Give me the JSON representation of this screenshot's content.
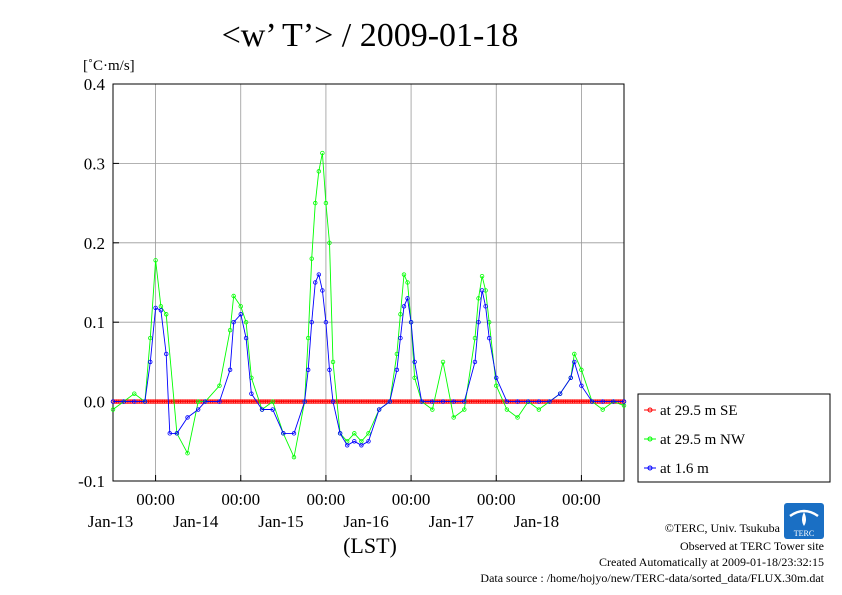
{
  "chart_data": {
    "type": "line",
    "title": "<w’ T’> / 2009-01-18",
    "ylabel": "[˚C·m/s]",
    "xlabel": "(LST)",
    "ylim": [
      -0.1,
      0.4
    ],
    "yticks": [
      "0.4",
      "0.3",
      "0.2",
      "0.1",
      "0.0",
      "-0.1"
    ],
    "xlim_hours": [
      0,
      144
    ],
    "xticks": [
      {
        "hour": 12,
        "time": "00:00",
        "date": "Jan-13"
      },
      {
        "hour": 36,
        "time": "00:00",
        "date": "Jan-14"
      },
      {
        "hour": 60,
        "time": "00:00",
        "date": "Jan-15"
      },
      {
        "hour": 84,
        "time": "00:00",
        "date": "Jan-16"
      },
      {
        "hour": 108,
        "time": "00:00",
        "date": "Jan-17"
      },
      {
        "hour": 132,
        "time": "00:00",
        "date": "Jan-18"
      }
    ],
    "grid": true,
    "legend_position": "right",
    "series": [
      {
        "name": "at 29.5 m SE",
        "color": "#ff0000",
        "x": [
          0,
          144
        ],
        "y": [
          0.0,
          0.0
        ]
      },
      {
        "name": "at 29.5 m NW",
        "color": "#00ff00",
        "x": [
          0,
          3,
          6,
          9,
          10.5,
          12,
          13.5,
          15,
          18,
          21,
          24,
          26,
          30,
          33,
          34,
          36,
          37.5,
          39,
          42,
          45,
          48,
          51,
          54,
          55,
          56,
          57,
          58,
          59,
          60,
          61,
          62,
          64,
          66,
          68,
          70,
          72,
          75,
          78,
          80,
          81,
          82,
          83,
          84,
          85,
          87,
          90,
          93,
          96,
          99,
          102,
          103,
          104,
          105,
          106,
          108,
          111,
          114,
          117,
          120,
          123,
          126,
          129,
          130,
          132,
          135,
          138,
          141,
          144
        ],
        "y": [
          -0.01,
          0.0,
          0.01,
          0.0,
          0.08,
          0.178,
          0.12,
          0.11,
          -0.04,
          -0.065,
          0.0,
          0.0,
          0.02,
          0.09,
          0.133,
          0.12,
          0.1,
          0.03,
          -0.01,
          0.0,
          -0.04,
          -0.07,
          0.0,
          0.08,
          0.18,
          0.25,
          0.29,
          0.313,
          0.25,
          0.2,
          0.05,
          -0.04,
          -0.05,
          -0.04,
          -0.05,
          -0.04,
          -0.01,
          0.0,
          0.06,
          0.11,
          0.16,
          0.15,
          0.1,
          0.03,
          0.0,
          -0.01,
          0.05,
          -0.02,
          -0.01,
          0.08,
          0.13,
          0.158,
          0.14,
          0.1,
          0.02,
          -0.01,
          -0.02,
          0.0,
          -0.01,
          0.0,
          0.01,
          0.03,
          0.06,
          0.04,
          0.0,
          -0.01,
          0.0,
          -0.005
        ]
      },
      {
        "name": "at 1.6 m",
        "color": "#0000ff",
        "x": [
          0,
          3,
          6,
          9,
          10.5,
          12,
          13.5,
          15,
          16,
          18,
          21,
          24,
          26,
          30,
          33,
          34,
          36,
          37.5,
          39,
          42,
          45,
          48,
          51,
          54,
          55,
          56,
          57,
          58,
          59,
          60,
          61,
          62,
          64,
          66,
          68,
          70,
          72,
          75,
          78,
          80,
          81,
          82,
          83,
          84,
          85,
          87,
          90,
          93,
          96,
          99,
          102,
          103,
          104,
          105,
          106,
          108,
          111,
          114,
          117,
          120,
          123,
          126,
          129,
          130,
          132,
          135,
          138,
          141,
          144
        ],
        "y": [
          0.0,
          0.0,
          0.0,
          0.0,
          0.05,
          0.118,
          0.115,
          0.06,
          -0.04,
          -0.04,
          -0.02,
          -0.01,
          0.0,
          0.0,
          0.04,
          0.1,
          0.11,
          0.08,
          0.01,
          -0.01,
          -0.01,
          -0.04,
          -0.04,
          0.0,
          0.04,
          0.1,
          0.15,
          0.16,
          0.14,
          0.1,
          0.04,
          0.0,
          -0.04,
          -0.055,
          -0.05,
          -0.055,
          -0.05,
          -0.01,
          0.0,
          0.04,
          0.08,
          0.12,
          0.13,
          0.1,
          0.05,
          0.0,
          0.0,
          0.0,
          0.0,
          0.0,
          0.05,
          0.1,
          0.14,
          0.12,
          0.08,
          0.03,
          0.0,
          0.0,
          0.0,
          0.0,
          0.0,
          0.01,
          0.03,
          0.05,
          0.02,
          0.0,
          0.0,
          0.0,
          0.0
        ]
      }
    ]
  },
  "footer": {
    "copyright": "©TERC, Univ. Tsukuba",
    "site": "Observed at TERC Tower site",
    "created": "Created Automatically at 2009-01-18/23:32:15",
    "source": "Data source : /home/hojyo/new/TERC-data/sorted_data/FLUX.30m.dat"
  },
  "logo": {
    "text": "TERC",
    "color": "#1a6fc4"
  }
}
